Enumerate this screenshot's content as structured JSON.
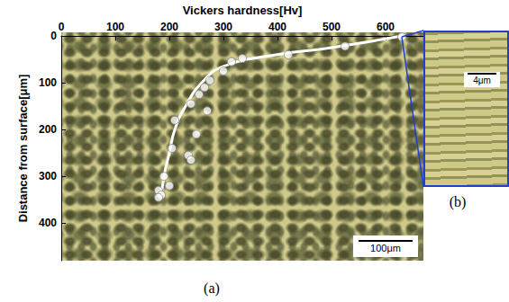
{
  "chart_data": {
    "type": "scatter",
    "x_label": "Vickers hardness[Hv]",
    "y_label": "Distance from surface[μm]",
    "xlim": [
      0,
      670
    ],
    "xticks": [
      0,
      100,
      200,
      300,
      400,
      500,
      600
    ],
    "ylim": [
      0,
      480
    ],
    "yticks": [
      0,
      100,
      200,
      300,
      400
    ],
    "grid": false,
    "series": [
      {
        "type": "scatter",
        "color": "#ffffff",
        "marker": "circle",
        "x": [
          630,
          525,
          420,
          335,
          315,
          300,
          275,
          265,
          255,
          240,
          270,
          210,
          250,
          205,
          235,
          240,
          190,
          200,
          180,
          185,
          180
        ],
        "values": [
          2,
          22,
          40,
          48,
          55,
          75,
          95,
          110,
          125,
          145,
          160,
          180,
          210,
          240,
          255,
          265,
          300,
          320,
          330,
          340,
          345
        ]
      },
      {
        "type": "line",
        "color": "#ffffff",
        "line_style": "solid",
        "x": [
          630,
          500,
          400,
          300,
          260,
          230,
          210,
          200,
          190,
          185
        ],
        "values": [
          0,
          25,
          40,
          65,
          100,
          150,
          200,
          250,
          300,
          345
        ]
      }
    ]
  },
  "panels": {
    "a": {
      "label": "(a)",
      "scale_bar": "100μm"
    },
    "b": {
      "label": "(b)",
      "scale_bar": "4μm"
    }
  }
}
